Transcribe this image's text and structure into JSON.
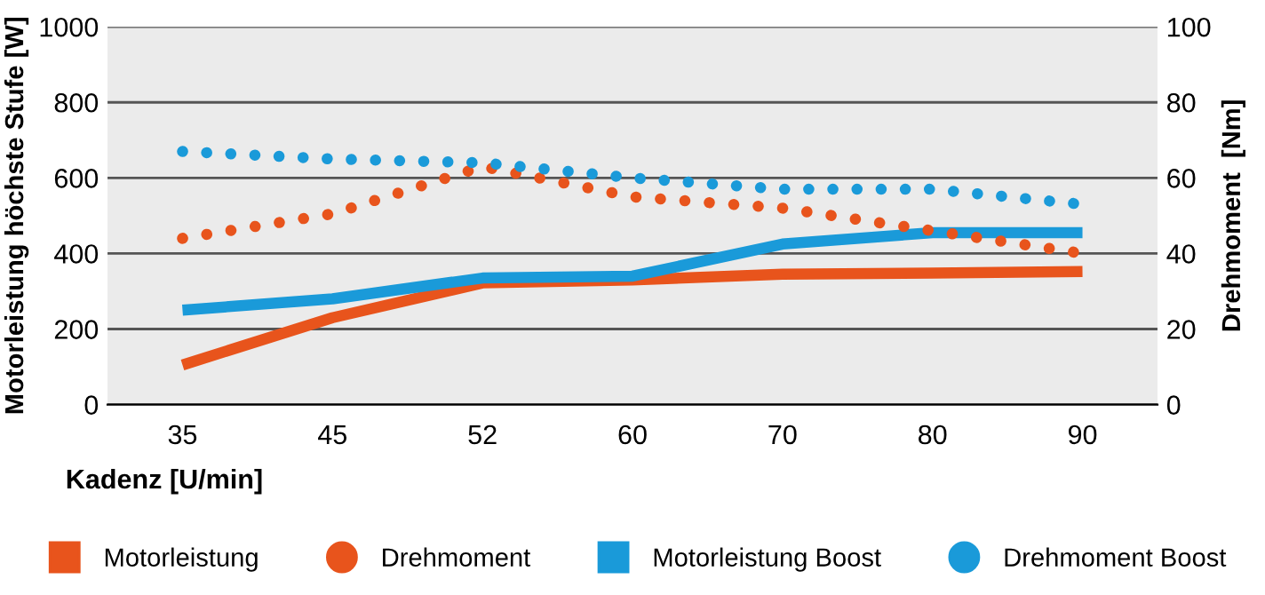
{
  "chart_data": {
    "type": "line",
    "xlabel": "Kadenz [U/min]",
    "ylabel": "Motorleistung höchste Stufe [W]",
    "y2label": "Drehmoment  [Nm]",
    "categories": [
      "35",
      "45",
      "52",
      "60",
      "70",
      "80",
      "90"
    ],
    "series": [
      {
        "name": "Motorleistung",
        "color": "#e8541c",
        "values": [
          105,
          230,
          322,
          330,
          345,
          348,
          352
        ],
        "line_style": "solid"
      },
      {
        "name": "Drehmoment",
        "color": "#e8541c",
        "values": [
          44,
          50.5,
          63,
          55,
          52,
          46,
          40
        ],
        "line_style": "dotted",
        "axis": "y2"
      },
      {
        "name": "Motorleistung Boost",
        "color": "#1a9ad9",
        "values": [
          250,
          280,
          335,
          340,
          425,
          455,
          455
        ],
        "line_style": "solid"
      },
      {
        "name": "Drehmoment Boost",
        "color": "#1a9ad9",
        "values": [
          67,
          65,
          64,
          60,
          57,
          57,
          53
        ],
        "line_style": "dotted",
        "axis": "y2"
      }
    ],
    "ylim": [
      0,
      1000
    ],
    "yticks": [
      0,
      200,
      400,
      600,
      800,
      1000
    ],
    "y2lim": [
      0,
      100
    ],
    "y2ticks": [
      0,
      20,
      40,
      60,
      80,
      100
    ],
    "grid": "y",
    "legend": "bottom"
  }
}
